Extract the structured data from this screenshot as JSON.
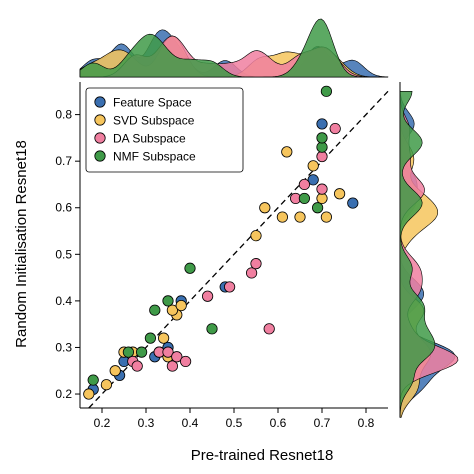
{
  "chart_data": {
    "type": "scatter",
    "xlabel": "Pre-trained Resnet18",
    "ylabel": "Random Initialisation Resnet18",
    "xlim": [
      0.15,
      0.85
    ],
    "ylim": [
      0.17,
      0.87
    ],
    "xticks": [
      "0.2",
      "0.3",
      "0.4",
      "0.5",
      "0.6",
      "0.7",
      "0.8"
    ],
    "yticks": [
      "0.2",
      "0.3",
      "0.4",
      "0.5",
      "0.6",
      "0.7",
      "0.8"
    ],
    "reference_line": "y = x (dashed)",
    "legend_position": "top-left",
    "marginals": "kernel density per series along top (x) and right (y)",
    "series": [
      {
        "name": "Feature Space",
        "color": "#3a6fb0",
        "points": [
          [
            0.18,
            0.21
          ],
          [
            0.24,
            0.24
          ],
          [
            0.25,
            0.27
          ],
          [
            0.32,
            0.28
          ],
          [
            0.33,
            0.29
          ],
          [
            0.35,
            0.3
          ],
          [
            0.38,
            0.4
          ],
          [
            0.48,
            0.43
          ],
          [
            0.68,
            0.66
          ],
          [
            0.7,
            0.78
          ],
          [
            0.77,
            0.61
          ]
        ]
      },
      {
        "name": "SVD Subspace",
        "color": "#f6c55d",
        "points": [
          [
            0.17,
            0.2
          ],
          [
            0.21,
            0.22
          ],
          [
            0.23,
            0.25
          ],
          [
            0.25,
            0.29
          ],
          [
            0.27,
            0.29
          ],
          [
            0.34,
            0.32
          ],
          [
            0.35,
            0.28
          ],
          [
            0.37,
            0.37
          ],
          [
            0.36,
            0.38
          ],
          [
            0.38,
            0.39
          ],
          [
            0.55,
            0.54
          ],
          [
            0.57,
            0.6
          ],
          [
            0.61,
            0.58
          ],
          [
            0.62,
            0.72
          ],
          [
            0.65,
            0.58
          ],
          [
            0.68,
            0.69
          ],
          [
            0.7,
            0.62
          ],
          [
            0.71,
            0.58
          ],
          [
            0.74,
            0.63
          ]
        ]
      },
      {
        "name": "DA Subspace",
        "color": "#f07fa0",
        "points": [
          [
            0.27,
            0.27
          ],
          [
            0.28,
            0.26
          ],
          [
            0.33,
            0.29
          ],
          [
            0.35,
            0.29
          ],
          [
            0.36,
            0.26
          ],
          [
            0.37,
            0.28
          ],
          [
            0.39,
            0.27
          ],
          [
            0.44,
            0.41
          ],
          [
            0.49,
            0.43
          ],
          [
            0.54,
            0.46
          ],
          [
            0.55,
            0.48
          ],
          [
            0.58,
            0.34
          ],
          [
            0.64,
            0.62
          ],
          [
            0.66,
            0.65
          ],
          [
            0.7,
            0.71
          ],
          [
            0.7,
            0.64
          ],
          [
            0.73,
            0.77
          ]
        ]
      },
      {
        "name": "NMF Subspace",
        "color": "#3f9a48",
        "points": [
          [
            0.18,
            0.23
          ],
          [
            0.26,
            0.29
          ],
          [
            0.29,
            0.29
          ],
          [
            0.31,
            0.32
          ],
          [
            0.32,
            0.38
          ],
          [
            0.35,
            0.4
          ],
          [
            0.4,
            0.47
          ],
          [
            0.45,
            0.34
          ],
          [
            0.66,
            0.62
          ],
          [
            0.69,
            0.6
          ],
          [
            0.7,
            0.73
          ],
          [
            0.7,
            0.75
          ],
          [
            0.71,
            0.85
          ]
        ]
      }
    ]
  }
}
